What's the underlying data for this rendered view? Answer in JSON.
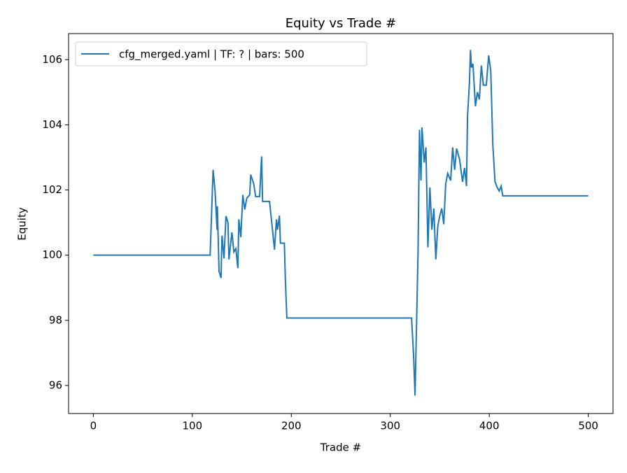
{
  "chart_data": {
    "type": "line",
    "title": "Equity vs Trade #",
    "x_label": "Trade #",
    "y_label": "Equity",
    "x": [
      0,
      118,
      121,
      123,
      125,
      125.3,
      127,
      129,
      130,
      132,
      134,
      136,
      137,
      140,
      142,
      144,
      146,
      147,
      149,
      151,
      153,
      155,
      158,
      159,
      162,
      164,
      168,
      170,
      171,
      178,
      181,
      183,
      185,
      186,
      188,
      189,
      193,
      194,
      195.5,
      321.5,
      323.6,
      325,
      328,
      329.5,
      331,
      332,
      334.3,
      336,
      338,
      340,
      342,
      344,
      346,
      348,
      350,
      352,
      354,
      356,
      358,
      361,
      363,
      365,
      367,
      370,
      373,
      375,
      377,
      378,
      380,
      381,
      382,
      383.5,
      386,
      388,
      390,
      392,
      394,
      397,
      399.4,
      401.5,
      403.6,
      405.8,
      408,
      410,
      412,
      413.6,
      500
    ],
    "series": [
      {
        "name": "cfg_merged.yaml | TF: ? | bars: 500",
        "color": "#1f77b4",
        "values": [
          100,
          100,
          102.62,
          101.97,
          100.78,
          101.5,
          99.5,
          99.3,
          100.6,
          99.9,
          101.2,
          101,
          99.87,
          100.7,
          100.1,
          100.2,
          99.6,
          101.1,
          100.55,
          101.85,
          101.4,
          101.75,
          101.85,
          102.47,
          102.19,
          101.8,
          101.8,
          103.03,
          101.65,
          101.65,
          100.78,
          100.17,
          101.1,
          100.78,
          101.21,
          100.37,
          100.37,
          99.26,
          98.07,
          98.07,
          96.88,
          95.69,
          100.02,
          103.85,
          102.29,
          103.92,
          102.84,
          103.31,
          100.24,
          102.08,
          100.78,
          101.43,
          99.87,
          100.89,
          101.21,
          101.43,
          100.95,
          102.19,
          102.51,
          102.29,
          103.31,
          102.62,
          103.27,
          102.94,
          102.25,
          102.68,
          102.12,
          104.24,
          105.32,
          106.3,
          105.76,
          105.87,
          104.57,
          105.0,
          104.78,
          105.82,
          105.22,
          105.22,
          106.13,
          105.65,
          103.38,
          102.25,
          102.08,
          101.97,
          102.12,
          101.82,
          101.82
        ]
      }
    ],
    "xlim": [
      -25,
      525
    ],
    "xticks": [
      0,
      100,
      200,
      300,
      400,
      500
    ],
    "ylim": [
      95.14,
      106.8
    ],
    "yticks": [
      96,
      98,
      100,
      102,
      104,
      106
    ],
    "legend": "upper left"
  }
}
